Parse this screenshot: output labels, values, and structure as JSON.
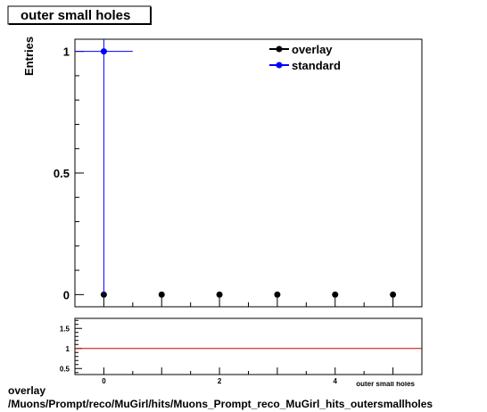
{
  "chart_data": {
    "type": "scatter",
    "title": "outer small holes",
    "xlabel": "outer small holes",
    "ylabel": "Entries",
    "xlim": [
      -0.5,
      5.5
    ],
    "ylim": [
      -0.05,
      1.05
    ],
    "grid": false,
    "legend_position": "top-right",
    "y_tick_labels": [
      {
        "value": 0,
        "label": "0"
      },
      {
        "value": 0.5,
        "label": "0.5"
      },
      {
        "value": 1,
        "label": "1"
      }
    ],
    "series": [
      {
        "name": "overlay",
        "color": "#000000",
        "x": [
          0,
          1,
          2,
          3,
          4,
          5
        ],
        "y": [
          0,
          0,
          0,
          0,
          0,
          0
        ]
      },
      {
        "name": "standard",
        "color": "#0000ff",
        "x": [
          0
        ],
        "y": [
          1
        ],
        "x_error": [
          0.5
        ],
        "error_from_zero": true
      }
    ],
    "ratio_panel": {
      "ylim": [
        0.35,
        1.75
      ],
      "reference_line": 1,
      "reference_color": "#cc0000",
      "x_tick_labels": [
        {
          "value": 0,
          "label": "0"
        },
        {
          "value": 2,
          "label": "2"
        },
        {
          "value": 4,
          "label": "4"
        }
      ],
      "y_tick_labels": [
        {
          "value": 0.5,
          "label": "0.5"
        },
        {
          "value": 1,
          "label": "1"
        },
        {
          "value": 1.5,
          "label": "1.5"
        }
      ]
    }
  },
  "footer": {
    "line1": "overlay",
    "line2": "/Muons/Prompt/reco/MuGirl/hits/Muons_Prompt_reco_MuGirl_hits_outersmallholes"
  }
}
